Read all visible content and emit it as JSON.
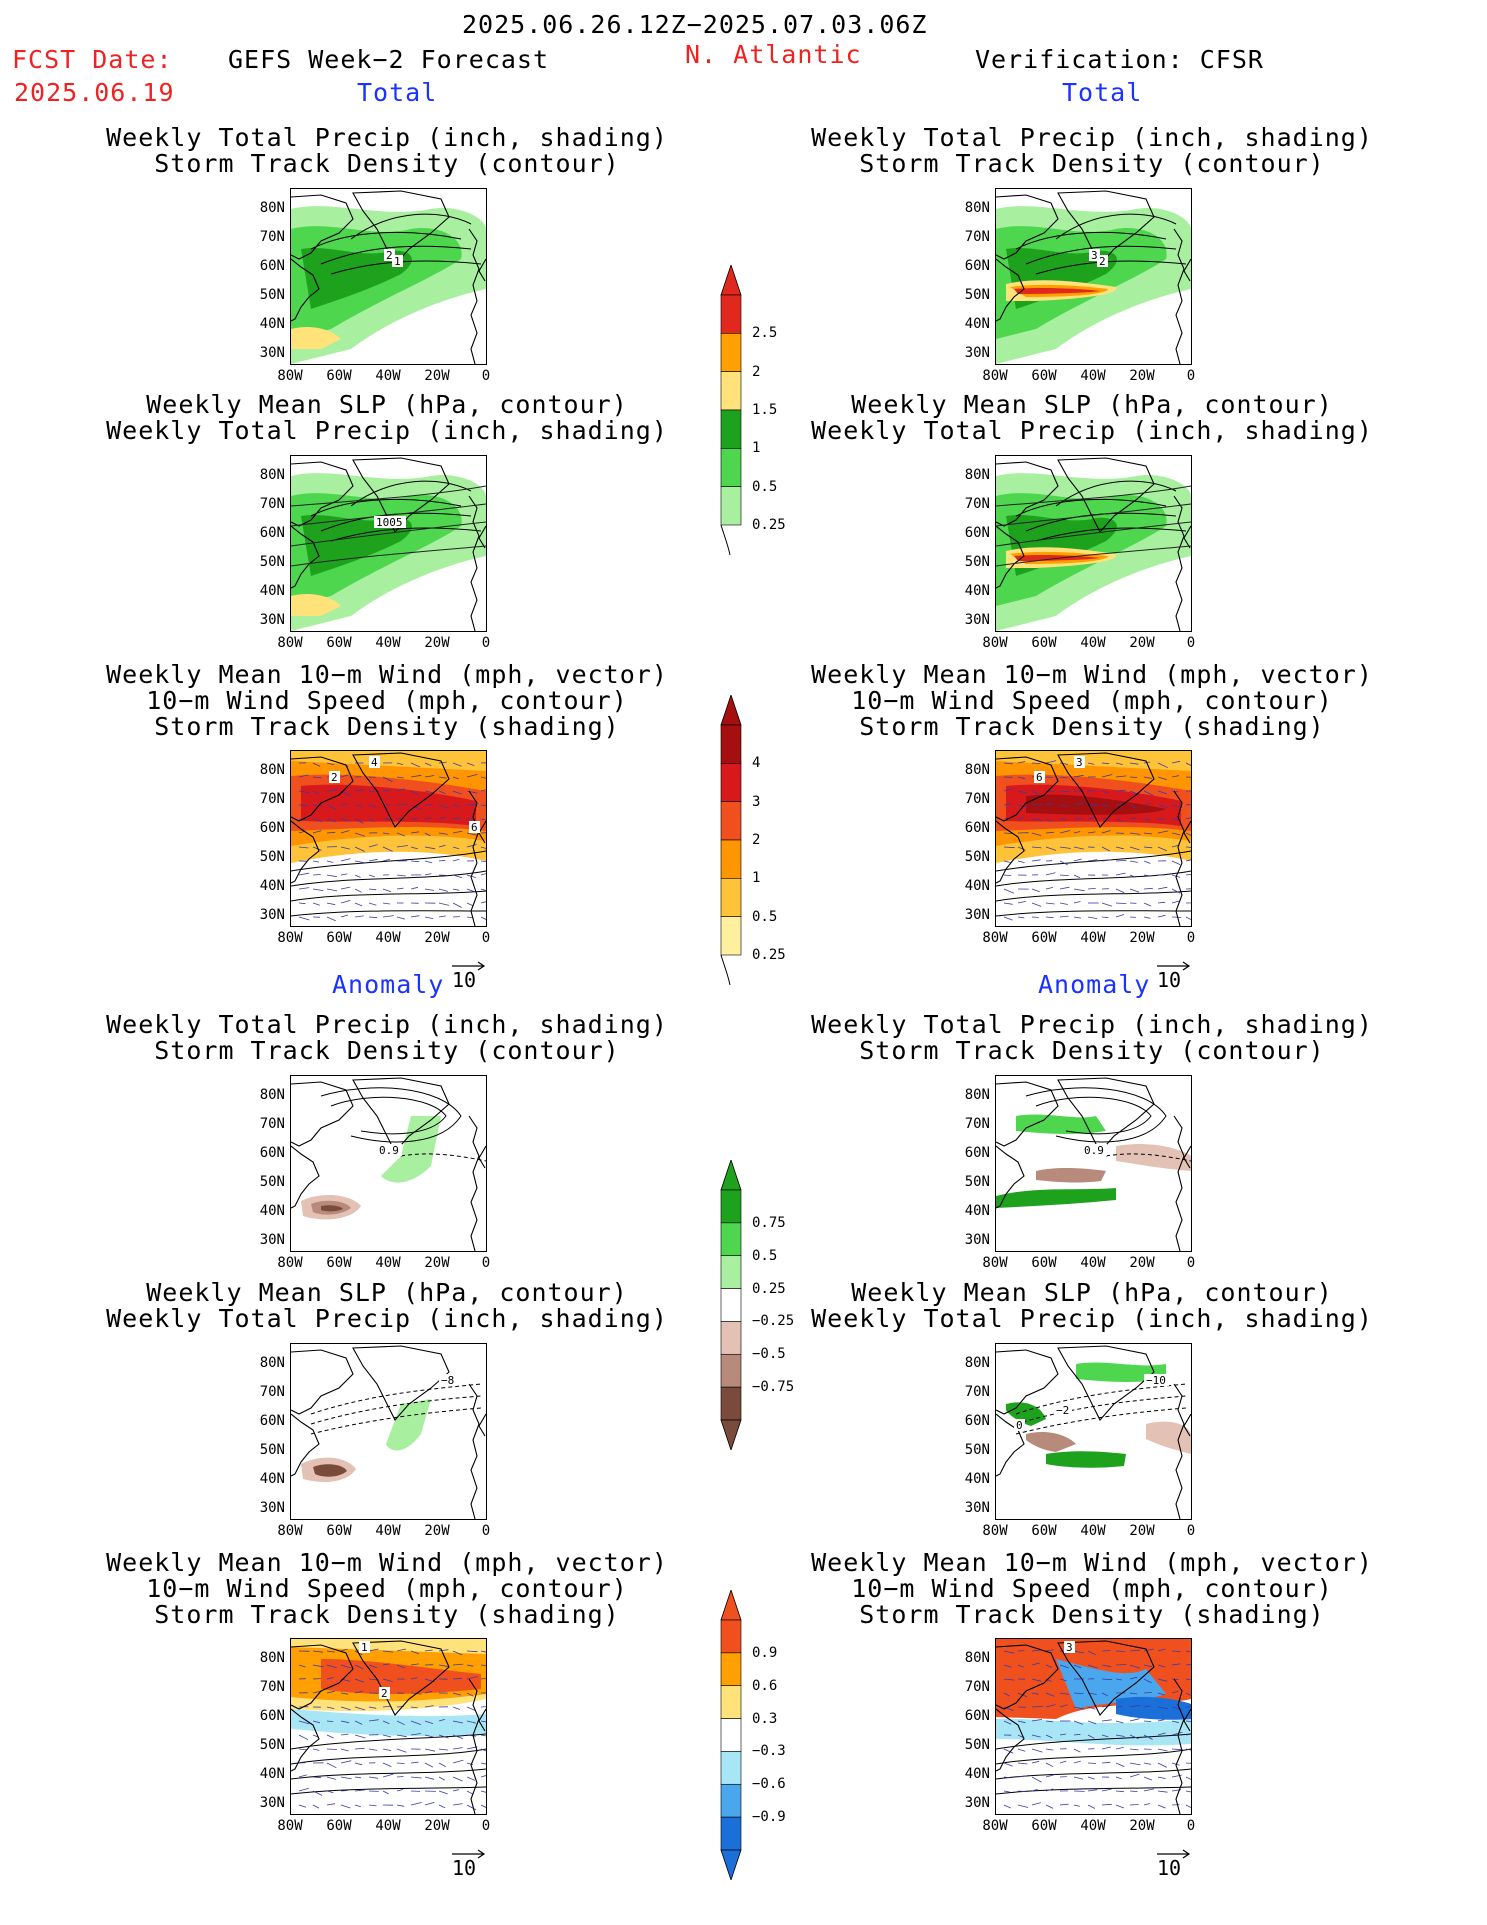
{
  "header": {
    "period": "2025.06.26.12Z−2025.07.03.06Z",
    "fcst_label": "FCST Date:",
    "fcst_date": "2025.06.19",
    "left_title": "GEFS Week−2 Forecast",
    "region": "N. Atlantic",
    "right_title": "Verification: CFSR"
  },
  "sections": {
    "total": "Total",
    "anomaly": "Anomaly"
  },
  "panel_titles": {
    "precip_track": [
      "Weekly Total Precip (inch, shading)",
      "Storm Track Density (contour)"
    ],
    "slp_precip": [
      "Weekly Mean SLP (hPa, contour)",
      "Weekly Total Precip (inch, shading)"
    ],
    "wind_track": [
      "Weekly Mean 10−m Wind (mph, vector)",
      "10−m Wind Speed (mph, contour)",
      "Storm Track Density (shading)"
    ]
  },
  "axes": {
    "lat": [
      "80N",
      "70N",
      "60N",
      "50N",
      "40N",
      "30N"
    ],
    "lon": [
      "80W",
      "60W",
      "40W",
      "20W",
      "0"
    ]
  },
  "contour_labels": {
    "fc_precip_track": [
      "2",
      "1"
    ],
    "vf_precip_track": [
      "3",
      "2"
    ],
    "fc_slp": [
      "1005"
    ],
    "fc_wind": [
      "4",
      "2",
      "6"
    ],
    "vf_wind": [
      "3",
      "6"
    ],
    "fc_anom_track": [
      "0.9"
    ],
    "vf_anom_track": [
      "0.9"
    ],
    "fc_anom_slp": [
      "−8"
    ],
    "vf_anom_slp": [
      "−10",
      "0",
      "−2"
    ],
    "fc_anom_wind": [
      "1",
      "2"
    ],
    "vf_anom_wind": [
      "3"
    ]
  },
  "vector_ref": "10",
  "colorbars": {
    "precip_total": {
      "labels": [
        "2.5",
        "2",
        "1.5",
        "1",
        "0.5",
        "0.25"
      ],
      "colors": [
        "#e0281e",
        "#ff9f00",
        "#ffe27a",
        "#1ea21e",
        "#4ed64e",
        "#a8f0a0"
      ]
    },
    "track_total": {
      "labels": [
        "4",
        "3",
        "2",
        "1",
        "0.5",
        "0.25"
      ],
      "colors": [
        "#a50f0f",
        "#d7191c",
        "#f0501e",
        "#ff9500",
        "#ffc33a",
        "#fff0a0"
      ]
    },
    "precip_anom": {
      "labels": [
        "0.75",
        "0.5",
        "0.25",
        "−0.25",
        "−0.5",
        "−0.75"
      ],
      "colors": [
        "#1ea21e",
        "#4ed64e",
        "#a8f0a0",
        "#ffffff",
        "#e3c1b5",
        "#b78a7c",
        "#7a4a3c"
      ]
    },
    "track_anom": {
      "labels": [
        "0.9",
        "0.6",
        "0.3",
        "−0.3",
        "−0.6",
        "−0.9"
      ],
      "colors": [
        "#f0501e",
        "#ff9f00",
        "#ffe27a",
        "#ffffff",
        "#a8e6f5",
        "#4aa7ee",
        "#1a6fd8"
      ]
    }
  }
}
